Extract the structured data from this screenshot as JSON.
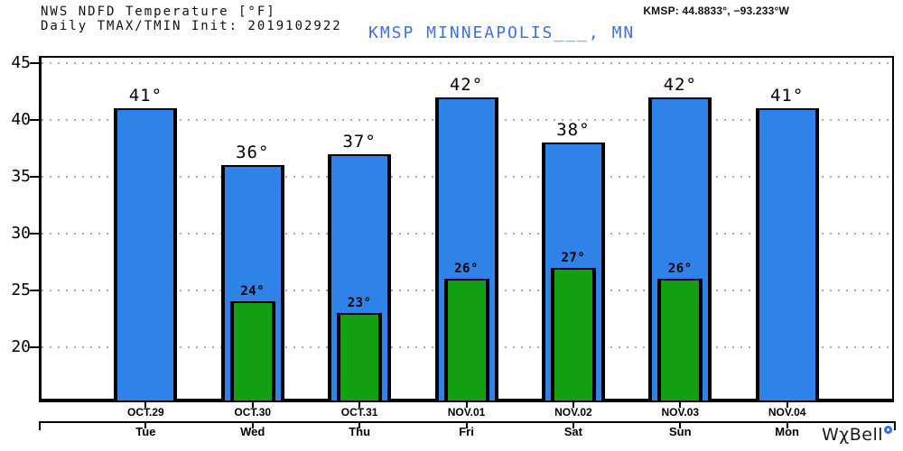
{
  "header": {
    "title_line1": "NWS NDFD Temperature [°F]",
    "title_line2": "Daily TMAX/TMIN Init: 2019102922",
    "station": "KMSP MINNEAPOLIS___, MN",
    "coords": "KMSP: 44.8833°, −93.233°W"
  },
  "logo": {
    "brand": "WχBell"
  },
  "colors": {
    "tmax_bar": "#2e82e8",
    "tmin_bar": "#12a012",
    "station_text": "#4170e4",
    "gridline": "#aaaaaa",
    "logo_ring": "#2e6be8"
  },
  "chart_data": {
    "type": "bar",
    "title": "NWS NDFD Temperature [°F]",
    "subtitle": "Daily TMAX/TMIN Init: 2019102922",
    "station": "KMSP MINNEAPOLIS___, MN",
    "location": "KMSP: 44.8833°, −93.233°W",
    "unit": "°",
    "categories": [
      "OCT.29",
      "OCT.30",
      "OCT.31",
      "NOV.01",
      "NOV.02",
      "NOV.03",
      "NOV.04"
    ],
    "weekdays": [
      "Tue",
      "Wed",
      "Thu",
      "Fri",
      "Sat",
      "Sun",
      "Mon"
    ],
    "series": [
      {
        "name": "TMAX",
        "color": "#2e82e8",
        "values": [
          41,
          36,
          37,
          42,
          38,
          42,
          41
        ]
      },
      {
        "name": "TMIN",
        "color": "#12a012",
        "values": [
          null,
          24,
          23,
          26,
          27,
          26,
          null
        ]
      }
    ],
    "yticks": [
      20,
      25,
      30,
      35,
      40,
      45
    ],
    "ylim": [
      15.3,
      45.4
    ],
    "grid": "dotted-horizontal",
    "legend": "none"
  }
}
